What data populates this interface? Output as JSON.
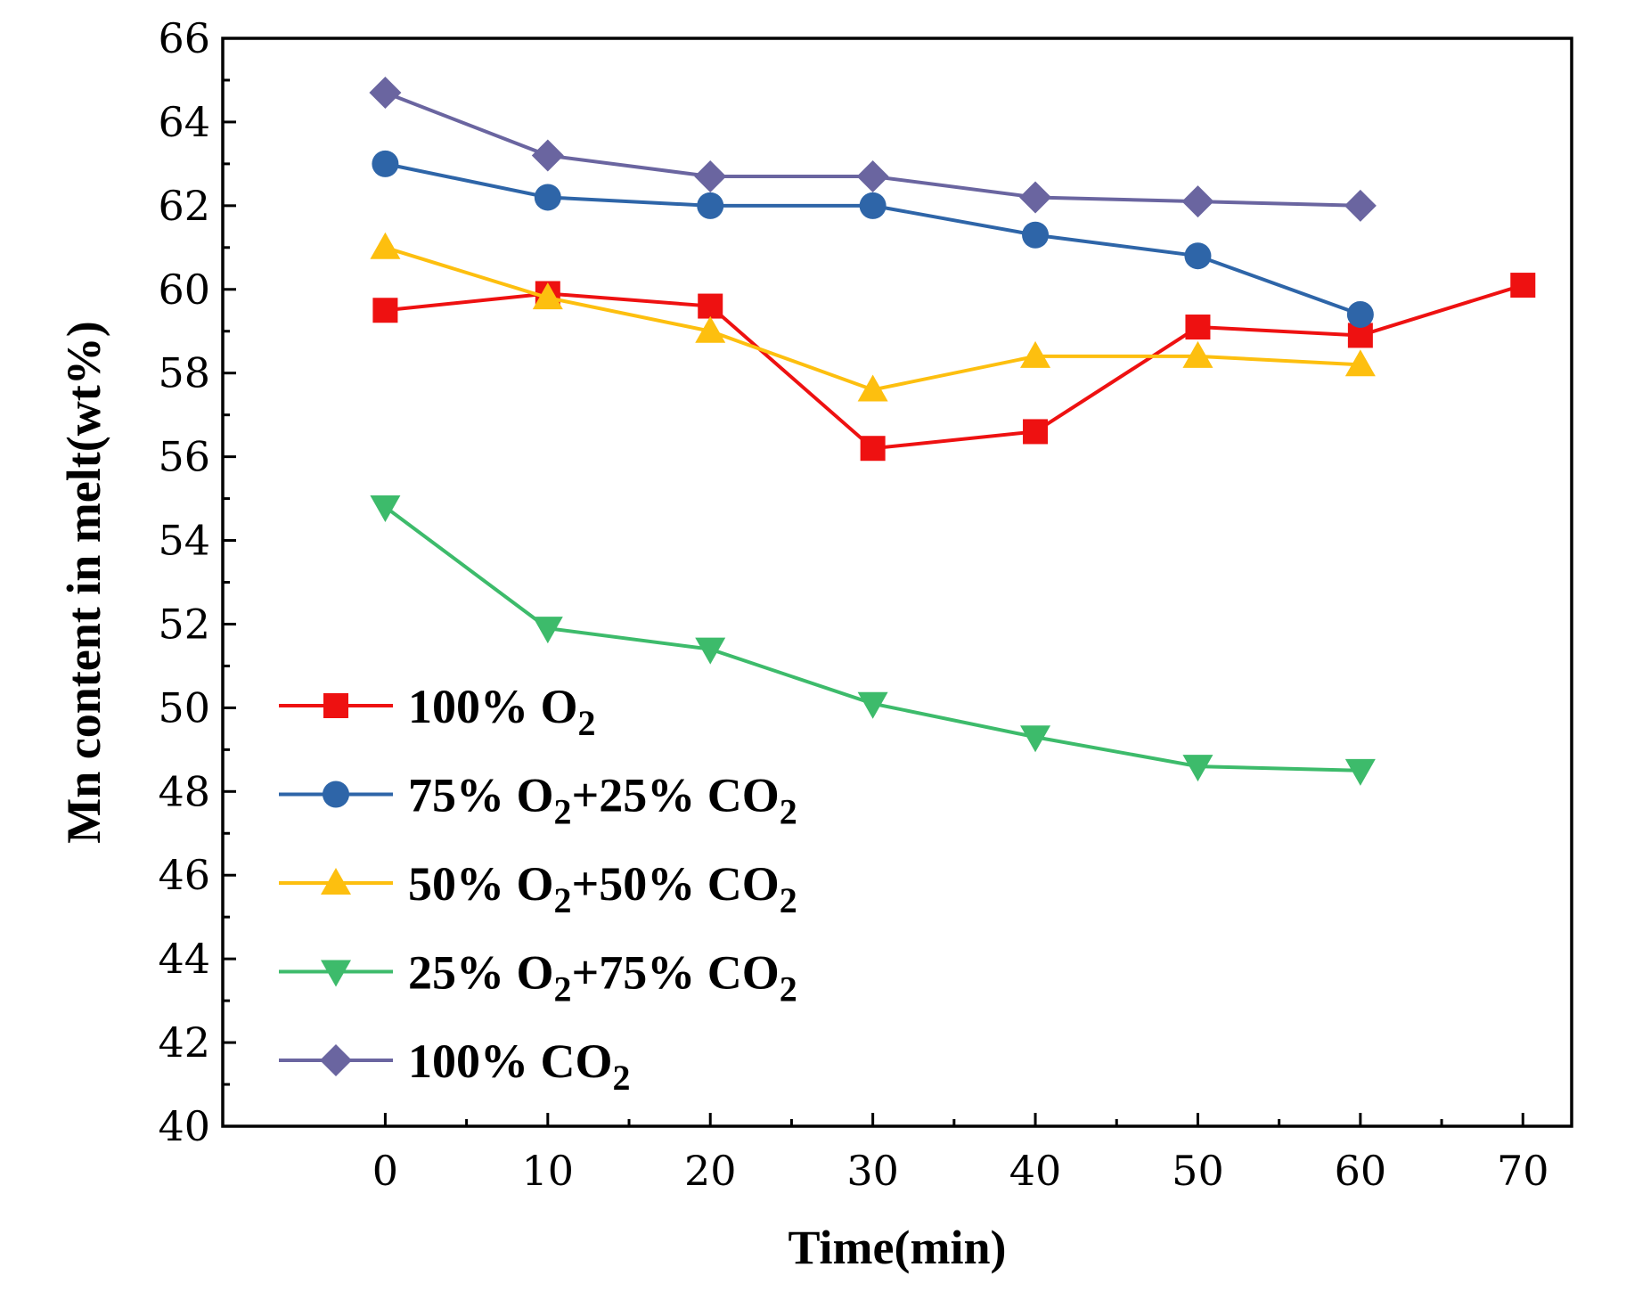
{
  "chart_data": {
    "type": "line",
    "title": "",
    "xlabel": "Time(min)",
    "ylabel": "Mn content in melt(wt%)",
    "xlim": [
      -10,
      73
    ],
    "ylim": [
      40,
      66
    ],
    "xticks": [
      0,
      10,
      20,
      30,
      40,
      50,
      60,
      70
    ],
    "yticks": [
      40,
      42,
      44,
      46,
      48,
      50,
      52,
      54,
      56,
      58,
      60,
      62,
      64,
      66
    ],
    "grid": false,
    "legend_position": "left",
    "series": [
      {
        "name": "100% O2",
        "legend": {
          "pre": "100% O",
          "sub1": "2",
          "mid": "",
          "sub2": ""
        },
        "color": "#ee1111",
        "marker": "square",
        "x": [
          0,
          10,
          20,
          30,
          40,
          50,
          60,
          70
        ],
        "y": [
          59.5,
          59.9,
          59.6,
          56.2,
          56.6,
          59.1,
          58.9,
          60.1
        ]
      },
      {
        "name": "75% O2+25% CO2",
        "legend": {
          "pre": "75% O",
          "sub1": "2",
          "mid": "+25% CO",
          "sub2": "2"
        },
        "color": "#2e65a8",
        "marker": "circle",
        "x": [
          0,
          10,
          20,
          30,
          40,
          50,
          60
        ],
        "y": [
          63.0,
          62.2,
          62.0,
          62.0,
          61.3,
          60.8,
          59.4
        ]
      },
      {
        "name": "50% O2+50% CO2",
        "legend": {
          "pre": "50% O",
          "sub1": "2",
          "mid": "+50% CO",
          "sub2": "2"
        },
        "color": "#fdbf0f",
        "marker": "triangle-up",
        "x": [
          0,
          10,
          20,
          30,
          40,
          50,
          60
        ],
        "y": [
          61.0,
          59.8,
          59.0,
          57.6,
          58.4,
          58.4,
          58.2
        ]
      },
      {
        "name": "25% O2+75% CO2",
        "legend": {
          "pre": "25% O",
          "sub1": "2",
          "mid": "+75% CO",
          "sub2": "2"
        },
        "color": "#3dbb6b",
        "marker": "triangle-down",
        "x": [
          0,
          10,
          20,
          30,
          40,
          50,
          60
        ],
        "y": [
          54.8,
          51.9,
          51.4,
          50.1,
          49.3,
          48.6,
          48.5
        ]
      },
      {
        "name": "100% CO2",
        "legend": {
          "pre": "100% CO",
          "sub1": "2",
          "mid": "",
          "sub2": ""
        },
        "color": "#6a65a0",
        "marker": "diamond",
        "x": [
          0,
          10,
          20,
          30,
          40,
          50,
          60
        ],
        "y": [
          64.7,
          63.2,
          62.7,
          62.7,
          62.2,
          62.1,
          62.0
        ]
      }
    ]
  }
}
